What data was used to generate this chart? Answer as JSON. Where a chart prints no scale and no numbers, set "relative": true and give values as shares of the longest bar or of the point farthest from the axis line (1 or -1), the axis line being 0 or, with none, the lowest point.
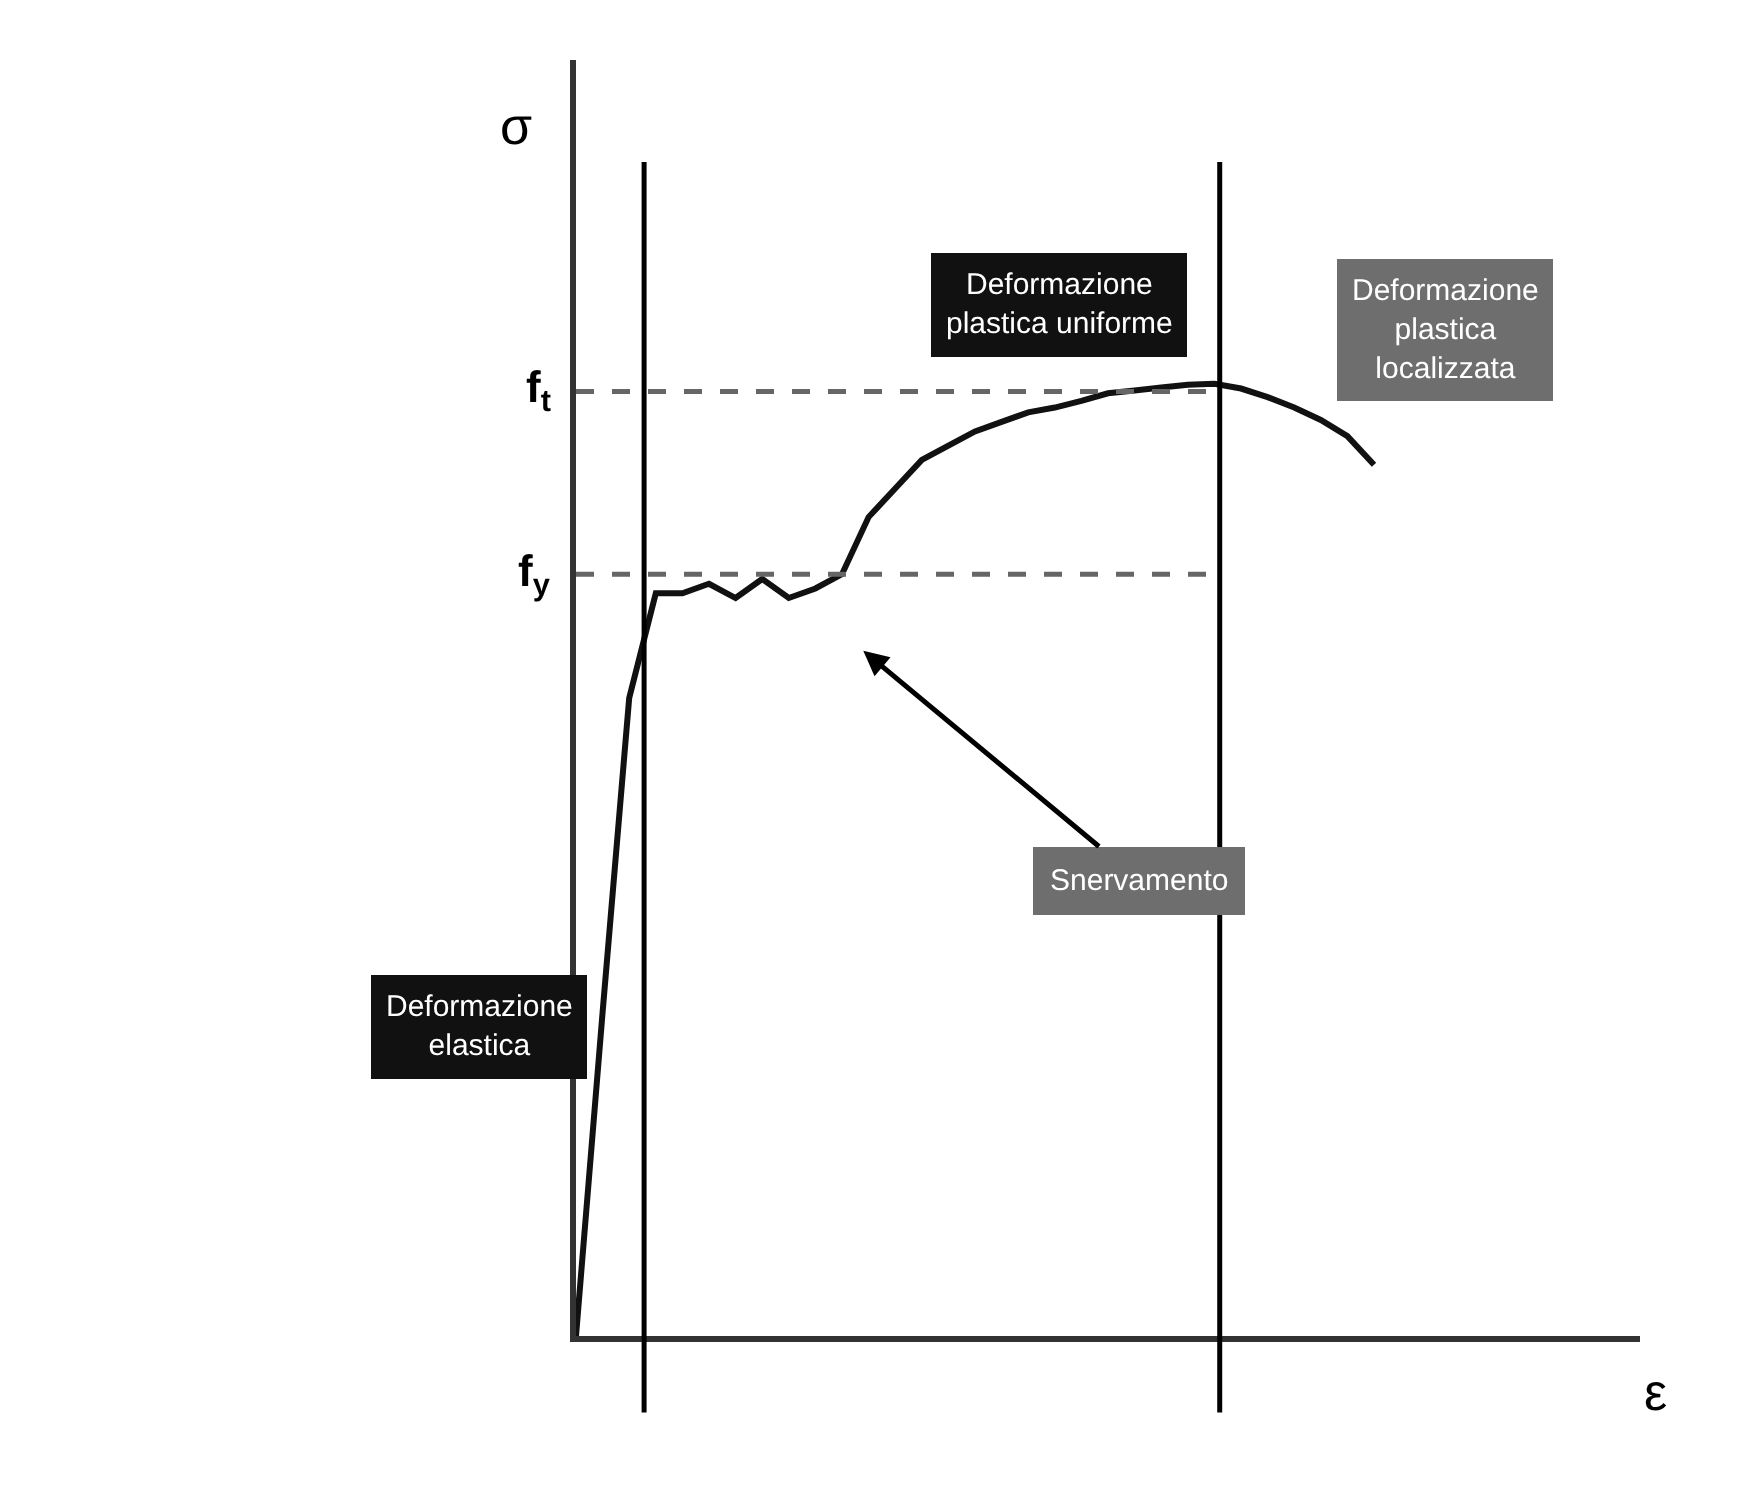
{
  "chart_data": {
    "type": "line",
    "relative": true,
    "xlabel": "ε",
    "ylabel": "σ",
    "categories": [
      null,
      null,
      null,
      null,
      null,
      null,
      null,
      null,
      null,
      null,
      null,
      null,
      null,
      null,
      null,
      null,
      null,
      null,
      null,
      null,
      null,
      null,
      null,
      null,
      null,
      null,
      null,
      null,
      null,
      null,
      null
    ],
    "series": [
      {
        "color": "#111111",
        "line_style": "solid",
        "values": [
          0,
          0.34,
          0.67,
          0.78,
          0.78,
          0.79,
          0.775,
          0.795,
          0.775,
          0.785,
          0.8,
          0.86,
          0.89,
          0.92,
          0.935,
          0.95,
          0.96,
          0.97,
          0.975,
          0.982,
          0.99,
          0.993,
          0.996,
          0.999,
          1,
          0.995,
          0.986,
          0.975,
          0.962,
          0.945,
          0.915
        ]
      }
    ],
    "ref_lines": [
      {
        "axis": "y",
        "value": 0.992,
        "label": "f$_{t}$",
        "color": "#666666",
        "line_style": "dashed"
      },
      {
        "axis": "y",
        "value": 0.8,
        "label": "f$_{y}$",
        "color": "#666666",
        "line_style": "dashed"
      }
    ],
    "annotations": [
      "Deformazione\nplastica uniforme",
      "Deformazione\nplastica\nlocalizzata",
      "Deformazione\nelastica",
      "Snervamento"
    ]
  }
}
